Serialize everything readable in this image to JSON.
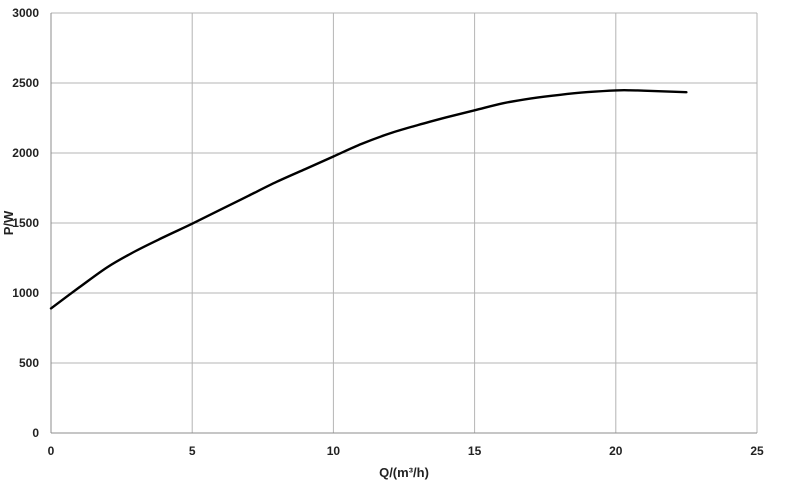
{
  "chart_data": {
    "type": "line",
    "title": "",
    "xlabel": "Q/(m³/h)",
    "ylabel": "P/W",
    "xlim": [
      0,
      25
    ],
    "ylim": [
      0,
      3000
    ],
    "xticks": [
      0,
      5,
      10,
      15,
      20,
      25
    ],
    "yticks": [
      0,
      500,
      1000,
      1500,
      2000,
      2500,
      3000
    ],
    "grid": true,
    "legend": "none",
    "line_color": "#000000",
    "grid_color": "#b4b4b4",
    "series": [
      {
        "x": [
          0,
          1,
          2,
          3,
          4,
          5,
          6,
          7,
          8,
          9,
          10,
          11,
          12,
          13,
          14,
          15,
          16,
          17,
          18,
          19,
          20,
          20.5,
          21,
          22,
          22.5
        ],
        "y": [
          890,
          1040,
          1185,
          1300,
          1400,
          1495,
          1595,
          1695,
          1795,
          1885,
          1975,
          2065,
          2140,
          2200,
          2255,
          2305,
          2355,
          2390,
          2415,
          2435,
          2447,
          2448,
          2445,
          2438,
          2434
        ]
      }
    ]
  }
}
